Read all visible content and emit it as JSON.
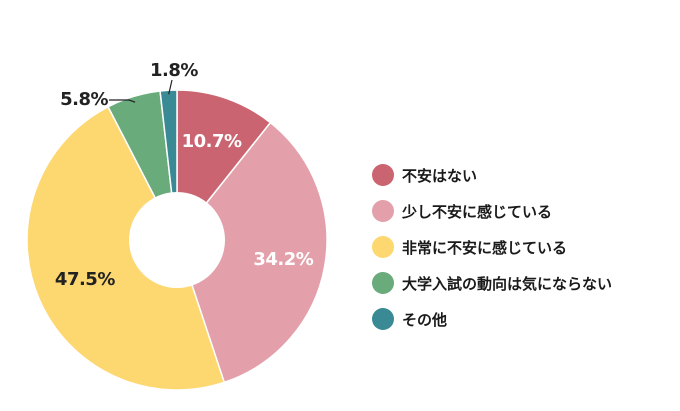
{
  "chart_data": {
    "type": "pie",
    "donut": true,
    "categories": [
      "不安はない",
      "少し不安に感じている",
      "非常に不安に感じている",
      "大学入試の動向は気にならない",
      "その他"
    ],
    "values": [
      10.7,
      34.2,
      47.5,
      5.8,
      1.8
    ],
    "value_labels": [
      "10.7%",
      "34.2%",
      "47.5%",
      "5.8%",
      "1.8%"
    ],
    "colors": [
      "#c96470",
      "#e3a0aa",
      "#fdd770",
      "#6aab7c",
      "#3a8a96"
    ],
    "legend_position": "right"
  }
}
